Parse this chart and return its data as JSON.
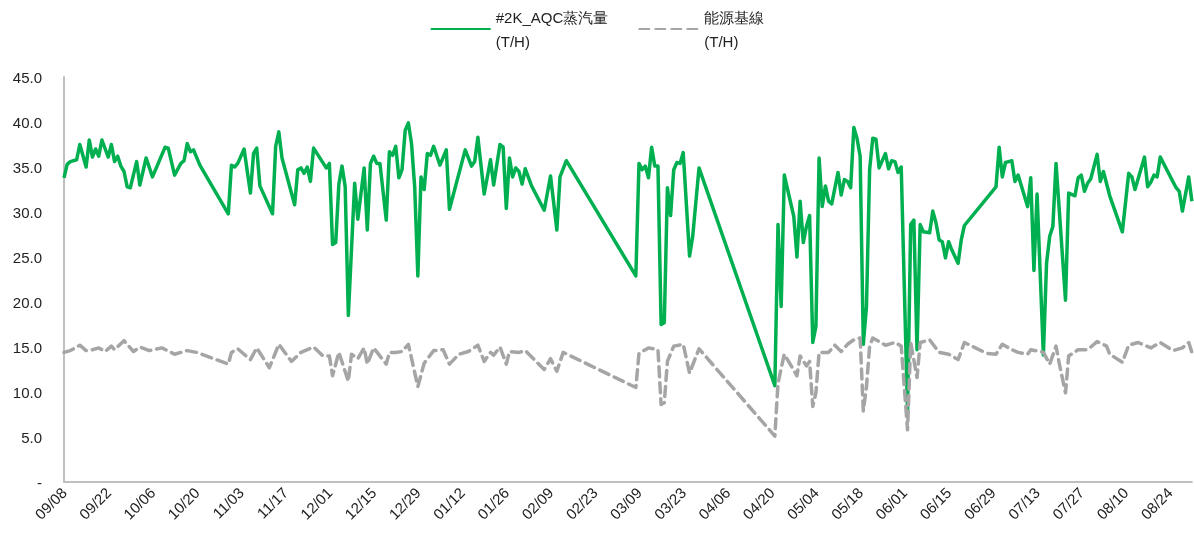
{
  "chart_data": {
    "type": "line",
    "legend": "top",
    "marker": "none",
    "categories": [
      "09/08",
      null,
      null,
      null,
      null,
      null,
      null,
      null,
      null,
      null,
      null,
      null,
      null,
      null,
      "09/22",
      null,
      null,
      null,
      null,
      null,
      null,
      null,
      null,
      null,
      null,
      null,
      null,
      null,
      "10/06",
      null,
      null,
      null,
      null,
      null,
      null,
      null,
      null,
      null,
      null,
      null,
      null,
      null,
      "10/20",
      null,
      null,
      null,
      null,
      null,
      null,
      null,
      null,
      null,
      null,
      null,
      null,
      null,
      "11/03",
      null,
      null,
      null,
      null,
      null,
      null,
      null,
      null,
      null,
      null,
      null,
      null,
      null,
      "11/17",
      null,
      null,
      null,
      null,
      null,
      null,
      null,
      null,
      null,
      null,
      null,
      null,
      null,
      "12/01",
      null,
      null,
      null,
      null,
      null,
      null,
      null,
      null,
      null,
      null,
      null,
      null,
      null,
      "12/15",
      null,
      null,
      null,
      null,
      null,
      null,
      null,
      null,
      null,
      null,
      null,
      null,
      null,
      "12/29",
      null,
      null,
      null,
      null,
      null,
      null,
      null,
      null,
      null,
      null,
      null,
      null,
      null,
      "01/12",
      null,
      null,
      null,
      null,
      null,
      null,
      null,
      null,
      null,
      null,
      null,
      null,
      null,
      "01/26",
      null,
      null,
      null,
      null,
      null,
      null,
      null,
      null,
      null,
      null,
      null,
      null,
      null,
      "02/09",
      null,
      null,
      null,
      null,
      null,
      null,
      null,
      null,
      null,
      null,
      null,
      null,
      null,
      "02/23",
      null,
      null,
      null,
      null,
      null,
      null,
      null,
      null,
      null,
      null,
      null,
      null,
      null,
      "03/09",
      null,
      null,
      null,
      null,
      null,
      null,
      null,
      null,
      null,
      null,
      null,
      null,
      null,
      "03/23",
      null,
      null,
      null,
      null,
      null,
      null,
      null,
      null,
      null,
      null,
      null,
      null,
      null,
      "04/06",
      null,
      null,
      null,
      null,
      null,
      null,
      null,
      null,
      null,
      null,
      null,
      null,
      null,
      "04/20",
      null,
      null,
      null,
      null,
      null,
      null,
      null,
      null,
      null,
      null,
      null,
      null,
      null,
      "05/04",
      null,
      null,
      null,
      null,
      null,
      null,
      null,
      null,
      null,
      null,
      null,
      null,
      null,
      "05/18",
      null,
      null,
      null,
      null,
      null,
      null,
      null,
      null,
      null,
      null,
      null,
      null,
      null,
      "06/01",
      null,
      null,
      null,
      null,
      null,
      null,
      null,
      null,
      null,
      null,
      null,
      null,
      null,
      "06/15",
      null,
      null,
      null,
      null,
      null,
      null,
      null,
      null,
      null,
      null,
      null,
      null,
      null,
      "06/29",
      null,
      null,
      null,
      null,
      null,
      null,
      null,
      null,
      null,
      null,
      null,
      null,
      null,
      "07/13",
      null,
      null,
      null,
      null,
      null,
      null,
      null,
      null,
      null,
      null,
      null,
      null,
      null,
      "07/27",
      null,
      null,
      null,
      null,
      null,
      null,
      null,
      null,
      null,
      null,
      null,
      null,
      null,
      "08/10",
      null,
      null,
      null,
      null,
      null,
      null,
      null,
      null,
      null,
      null,
      null,
      null,
      null,
      "08/24",
      null,
      null,
      null,
      null,
      null,
      null,
      null
    ],
    "ylim": [
      0,
      45
    ],
    "yticks": [
      {
        "value": 0,
        "label": "-"
      },
      {
        "value": 5,
        "label": "5.0"
      },
      {
        "value": 10,
        "label": "10.0"
      },
      {
        "value": 15,
        "label": "15.0"
      },
      {
        "value": 20,
        "label": "20.0"
      },
      {
        "value": 25,
        "label": "25.0"
      },
      {
        "value": 30,
        "label": "30.0"
      },
      {
        "value": 35,
        "label": "35.0"
      },
      {
        "value": 40,
        "label": "40.0"
      },
      {
        "value": 45,
        "label": "45.0"
      }
    ],
    "series": [
      {
        "name": "#2K_AQC蒸汽量\n(T/H)",
        "color": "#00b050",
        "line_style": "solid",
        "values": [
          33.8,
          35.3,
          35.6,
          null,
          35.8,
          37.5,
          null,
          35.0,
          38.0,
          36.1,
          37.0,
          36.2,
          38.0,
          null,
          36.1,
          37.5,
          35.6,
          36.2,
          35.1,
          34.5,
          32.8,
          32.7,
          null,
          35.6,
          33.0,
          null,
          36.0,
          null,
          33.9,
          null,
          null,
          null,
          37.2,
          37.1,
          null,
          34.1,
          null,
          35.4,
          35.7,
          37.6,
          36.7,
          36.9,
          null,
          35.2,
          null,
          null,
          null,
          null,
          null,
          null,
          null,
          null,
          29.8,
          35.2,
          35.0,
          35.4,
          null,
          37.0,
          null,
          32.1,
          36.5,
          37.1,
          32.9,
          null,
          null,
          null,
          29.8,
          37.3,
          38.9,
          36.0,
          null,
          null,
          null,
          30.8,
          34.7,
          34.9,
          34.3,
          35.0,
          33.4,
          37.1,
          null,
          null,
          null,
          34.9,
          35.4,
          26.4,
          26.6,
          33.1,
          35.1,
          32.8,
          18.5,
          null,
          33.2,
          29.2,
          null,
          34.9,
          28.0,
          35.4,
          36.2,
          35.4,
          35.4,
          null,
          29.1,
          36.7,
          36.3,
          37.3,
          33.8,
          34.7,
          39.1,
          39.9,
          37.6,
          32.8,
          22.9,
          33.9,
          32.5,
          36.5,
          36.3,
          37.3,
          null,
          35.2,
          null,
          36.9,
          30.3,
          null,
          null,
          null,
          null,
          36.9,
          null,
          35.1,
          35.6,
          38.3,
          null,
          32.0,
          null,
          35.8,
          33.0,
          null,
          37.5,
          37.2,
          30.4,
          36.0,
          33.9,
          34.9,
          34.5,
          33.1,
          34.8,
          null,
          32.9,
          null,
          null,
          null,
          30.2,
          null,
          34.0,
          null,
          28.0,
          33.9,
          null,
          35.7,
          null,
          null,
          null,
          null,
          null,
          null,
          null,
          null,
          null,
          null,
          null,
          null,
          null,
          null,
          null,
          null,
          null,
          null,
          null,
          null,
          null,
          22.9,
          35.4,
          34.7,
          35.1,
          33.8,
          37.2,
          35.1,
          35.1,
          17.5,
          17.7,
          32.7,
          29.6,
          34.7,
          35.5,
          35.4,
          36.6,
          null,
          25.1,
          27.3,
          null,
          34.9,
          null,
          null,
          null,
          null,
          null,
          null,
          null,
          null,
          null,
          null,
          null,
          null,
          null,
          null,
          null,
          null,
          null,
          null,
          null,
          null,
          null,
          null,
          null,
          10.7,
          28.6,
          19.5,
          34.1,
          null,
          null,
          29.5,
          25.0,
          31.2,
          26.6,
          28.4,
          29.6,
          15.5,
          17.3,
          36.0,
          30.6,
          32.9,
          31.2,
          30.9,
          null,
          34.4,
          31.9,
          33.6,
          33.4,
          32.7,
          39.4,
          38.2,
          36.2,
          15.3,
          19.5,
          34.7,
          38.2,
          38.1,
          34.9,
          null,
          36.5,
          34.8,
          35.7,
          35.6,
          34.4,
          35.0,
          null,
          7.7,
          28.6,
          29.1,
          14.7,
          28.6,
          27.8,
          null,
          27.7,
          30.1,
          28.8,
          26.9,
          26.7,
          24.9,
          26.7,
          25.8,
          null,
          24.3,
          26.9,
          28.5,
          null,
          null,
          null,
          null,
          null,
          null,
          null,
          null,
          null,
          32.8,
          37.2,
          33.9,
          35.5,
          35.6,
          35.7,
          33.4,
          34.1,
          null,
          null,
          30.6,
          33.8,
          23.5,
          32.0,
          null,
          14.1,
          24.3,
          27.3,
          28.4,
          35.4,
          null,
          null,
          20.2,
          32.1,
          null,
          31.8,
          33.8,
          34.1,
          32.3,
          33.2,
          33.7,
          null,
          36.4,
          33.4,
          34.5,
          null,
          31.8,
          null,
          null,
          null,
          27.8,
          null,
          34.3,
          33.9,
          32.5,
          null,
          null,
          36.1,
          32.8,
          33.3,
          34.1,
          33.9,
          36.1,
          null,
          null,
          null,
          null,
          32.7,
          32.3,
          30.1,
          null,
          33.9,
          31.2
        ]
      },
      {
        "name": "能源基線\n(T/H)",
        "color": "#a5a5a5",
        "line_style": "dashed",
        "values": [
          14.4,
          null,
          14.6,
          null,
          null,
          15.2,
          null,
          14.6,
          null,
          14.7,
          null,
          14.9,
          null,
          14.5,
          null,
          15.1,
          14.7,
          null,
          null,
          15.7,
          null,
          null,
          14.5,
          null,
          15.0,
          null,
          null,
          14.6,
          null,
          null,
          null,
          14.9,
          null,
          null,
          null,
          14.2,
          null,
          null,
          null,
          14.6,
          null,
          null,
          14.4,
          null,
          null,
          null,
          null,
          null,
          null,
          null,
          null,
          null,
          13.1,
          14.4,
          null,
          14.8,
          null,
          null,
          null,
          13.6,
          null,
          14.9,
          null,
          null,
          null,
          12.7,
          null,
          null,
          15.3,
          null,
          null,
          null,
          13.4,
          null,
          null,
          14.4,
          null,
          null,
          null,
          15.0,
          null,
          null,
          14.0,
          null,
          14.0,
          11.8,
          null,
          14.4,
          null,
          null,
          11.2,
          14.2,
          null,
          13.7,
          null,
          14.9,
          13.1,
          null,
          14.9,
          null,
          null,
          null,
          13.1,
          14.4,
          null,
          14.4,
          null,
          14.5,
          null,
          15.3,
          null,
          null,
          10.6,
          null,
          13.2,
          null,
          null,
          14.6,
          null,
          null,
          14.7,
          null,
          13.1,
          null,
          null,
          14.2,
          null,
          null,
          14.5,
          null,
          null,
          15.2,
          null,
          13.4,
          null,
          14.4,
          14.1,
          null,
          15.0,
          null,
          13.1,
          14.5,
          null,
          null,
          14.4,
          null,
          14.6,
          null,
          null,
          null,
          null,
          null,
          12.5,
          null,
          13.7,
          null,
          12.3,
          null,
          14.4,
          null,
          null,
          null,
          null,
          null,
          null,
          null,
          null,
          null,
          null,
          null,
          null,
          null,
          null,
          null,
          null,
          null,
          null,
          null,
          null,
          null,
          null,
          10.5,
          14.3,
          null,
          null,
          14.9,
          null,
          null,
          14.7,
          8.6,
          8.8,
          13.4,
          null,
          15.1,
          null,
          null,
          15.3,
          null,
          12.1,
          null,
          null,
          14.8,
          null,
          null,
          null,
          null,
          null,
          null,
          null,
          null,
          null,
          null,
          null,
          null,
          null,
          null,
          null,
          null,
          null,
          null,
          null,
          null,
          null,
          null,
          null,
          5.1,
          11.0,
          null,
          14.2,
          null,
          null,
          null,
          11.8,
          14.0,
          null,
          12.9,
          13.4,
          8.4,
          9.9,
          14.4,
          null,
          null,
          14.4,
          null,
          15.2,
          null,
          14.5,
          null,
          15.3,
          null,
          15.8,
          null,
          16.0,
          7.9,
          10.6,
          15.1,
          16.0,
          null,
          null,
          null,
          15.2,
          null,
          null,
          15.5,
          null,
          15.1,
          null,
          5.8,
          15.5,
          null,
          11.6,
          15.5,
          null,
          null,
          15.8,
          null,
          null,
          14.4,
          null,
          null,
          14.2,
          null,
          null,
          13.6,
          null,
          15.5,
          null,
          null,
          null,
          null,
          null,
          null,
          14.3,
          null,
          null,
          14.2,
          null,
          15.3,
          null,
          null,
          14.7,
          null,
          14.4,
          null,
          null,
          14.2,
          14.7,
          null,
          null,
          14.5,
          14.4,
          null,
          13.1,
          null,
          15.1,
          13.2,
          null,
          9.9,
          14.0,
          null,
          null,
          14.7,
          null,
          null,
          14.7,
          null,
          null,
          15.6,
          null,
          null,
          15.1,
          14.2,
          null,
          null,
          null,
          13.3,
          null,
          15.2,
          null,
          null,
          15.5,
          null,
          null,
          null,
          14.9,
          null,
          null,
          15.5,
          null,
          null,
          null,
          14.6,
          null,
          null,
          14.9,
          null,
          15.5,
          14.4
        ]
      }
    ]
  }
}
